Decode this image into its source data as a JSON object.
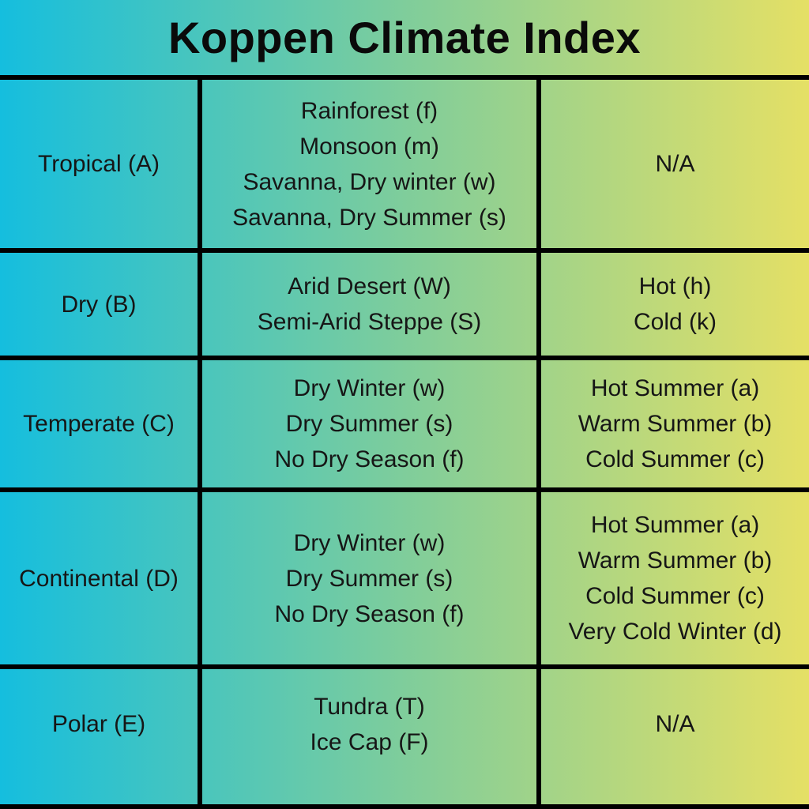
{
  "title": "Koppen Climate Index",
  "colors": {
    "gradient_start": "#15bede",
    "gradient_mid": "#7fcd9b",
    "gradient_end": "#e5e065",
    "border": "#000000",
    "text": "#161616"
  },
  "chart_data": {
    "type": "table",
    "title": "Koppen Climate Index",
    "grid": "thick black rules, no column headers",
    "rows": [
      {
        "group": "Tropical (A)",
        "subtypes": [
          "Rainforest (f)",
          "Monsoon (m)",
          "Savanna, Dry winter (w)",
          "Savanna, Dry Summer (s)"
        ],
        "modifiers": [
          "N/A"
        ]
      },
      {
        "group": "Dry (B)",
        "subtypes": [
          "Arid Desert (W)",
          "Semi-Arid Steppe (S)"
        ],
        "modifiers": [
          "Hot (h)",
          "Cold (k)"
        ]
      },
      {
        "group": "Temperate (C)",
        "subtypes": [
          "Dry Winter (w)",
          "Dry Summer (s)",
          "No Dry Season (f)"
        ],
        "modifiers": [
          "Hot Summer (a)",
          "Warm Summer (b)",
          "Cold Summer (c)"
        ]
      },
      {
        "group": "Continental (D)",
        "subtypes": [
          "Dry Winter (w)",
          "Dry Summer (s)",
          "No Dry Season (f)"
        ],
        "modifiers": [
          "Hot Summer (a)",
          "Warm Summer (b)",
          "Cold Summer (c)",
          "Very Cold Winter (d)"
        ]
      },
      {
        "group": "Polar (E)",
        "subtypes": [
          "Tundra (T)",
          "Ice Cap (F)"
        ],
        "modifiers": [
          "N/A"
        ]
      }
    ]
  }
}
